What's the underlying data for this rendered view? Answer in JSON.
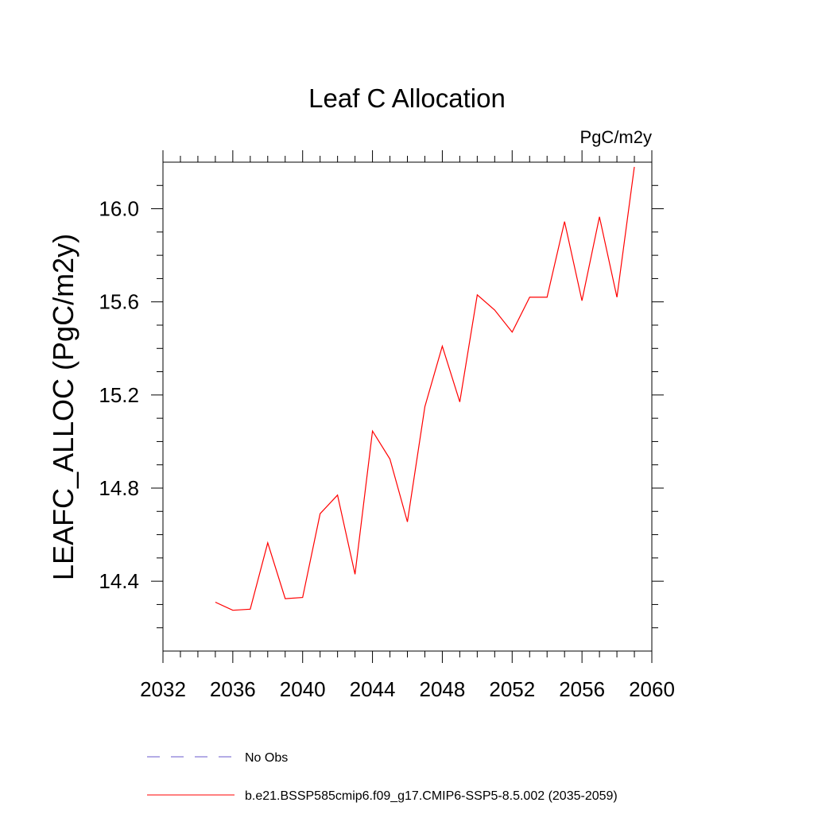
{
  "chart_data": {
    "type": "line",
    "title": "Leaf C Allocation",
    "units": "PgC/m2y",
    "xlabel": "",
    "ylabel": "LEAFC_ALLOC  (PgC/m2y)",
    "xlim": [
      2032,
      2060
    ],
    "ylim": [
      14.1,
      16.2
    ],
    "x_ticks": [
      2032,
      2036,
      2040,
      2044,
      2048,
      2052,
      2056,
      2060
    ],
    "x_tick_labels": [
      "2032",
      "2036",
      "2040",
      "2044",
      "2048",
      "2052",
      "2056",
      "2060"
    ],
    "y_ticks": [
      14.4,
      14.8,
      15.2,
      15.6,
      16.0
    ],
    "y_tick_labels": [
      "14.4",
      "14.8",
      "15.2",
      "15.6",
      "16.0"
    ],
    "grid": false,
    "legend_position": "bottom",
    "series": [
      {
        "name": "b.e21.BSSP585cmip6.f09_g17.CMIP6-SSP5-8.5.002 (2035-2059)",
        "color": "#ff0000",
        "style": "solid",
        "x": [
          2035,
          2036,
          2037,
          2038,
          2039,
          2040,
          2041,
          2042,
          2043,
          2044,
          2045,
          2046,
          2047,
          2048,
          2049,
          2050,
          2051,
          2052,
          2053,
          2054,
          2055,
          2056,
          2057,
          2058,
          2059
        ],
        "y": [
          14.31,
          14.275,
          14.28,
          14.565,
          14.325,
          14.33,
          14.69,
          14.77,
          14.43,
          15.045,
          14.925,
          14.655,
          15.15,
          15.41,
          15.17,
          15.63,
          15.565,
          15.47,
          15.62,
          15.62,
          15.945,
          15.605,
          15.965,
          15.62,
          16.18
        ]
      }
    ],
    "legend": [
      {
        "label": "No Obs",
        "color": "#6a5acd",
        "style": "dashed"
      },
      {
        "label": "b.e21.BSSP585cmip6.f09_g17.CMIP6-SSP5-8.5.002 (2035-2059)",
        "color": "#ff0000",
        "style": "solid"
      }
    ]
  }
}
